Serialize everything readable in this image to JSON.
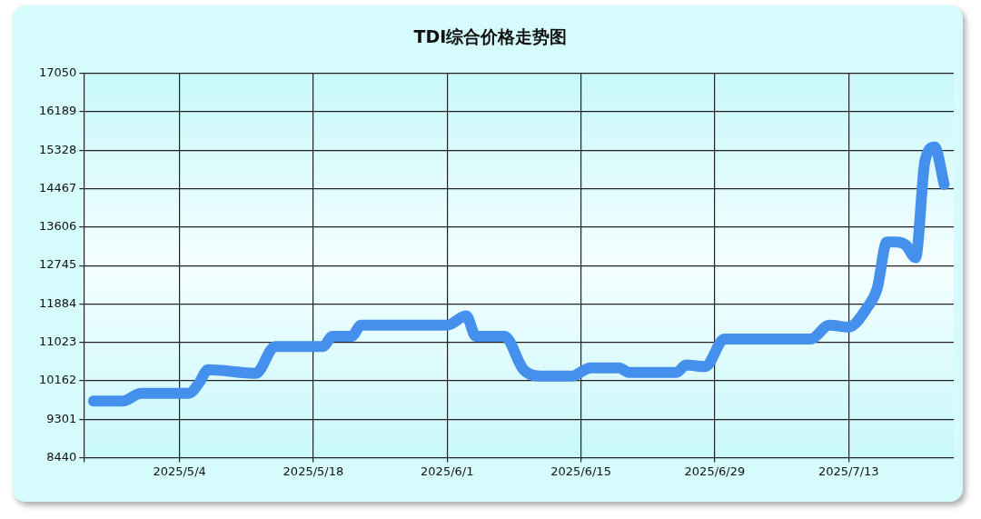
{
  "chart_data": {
    "type": "line",
    "title": "TDI综合价格走势图",
    "x": [
      "2025-04-25",
      "2025-04-28",
      "2025-04-30",
      "2025-05-05",
      "2025-05-06",
      "2025-05-07",
      "2025-05-12",
      "2025-05-14",
      "2025-05-19",
      "2025-05-20",
      "2025-05-22",
      "2025-05-23",
      "2025-06-01",
      "2025-06-03",
      "2025-06-04",
      "2025-06-07",
      "2025-06-09",
      "2025-06-11",
      "2025-06-12",
      "2025-06-14",
      "2025-06-16",
      "2025-06-19",
      "2025-06-20",
      "2025-06-25",
      "2025-06-26",
      "2025-06-28",
      "2025-06-30",
      "2025-07-09",
      "2025-07-11",
      "2025-07-13",
      "2025-07-15",
      "2025-07-16",
      "2025-07-17",
      "2025-07-18",
      "2025-07-19",
      "2025-07-20",
      "2025-07-21",
      "2025-07-22",
      "2025-07-23"
    ],
    "series": [
      {
        "color": "#4490ec",
        "values": [
          9705,
          9705,
          9880,
          9880,
          10100,
          10410,
          10330,
          10930,
          10930,
          11157,
          11157,
          11406,
          11406,
          11614,
          11157,
          11157,
          10410,
          10265,
          10265,
          10265,
          10452,
          10452,
          10348,
          10348,
          10514,
          10480,
          11095,
          11095,
          11406,
          11364,
          11820,
          12236,
          13270,
          13270,
          13200,
          12920,
          15100,
          15400,
          14560
        ]
      }
    ],
    "xlim": [
      "2025-04-24",
      "2025-07-24"
    ],
    "xticks": [
      {
        "value": "2025-04-24",
        "label": null
      },
      {
        "value": "2025-05-04",
        "label": "2025/5/4"
      },
      {
        "value": "2025-05-18",
        "label": "2025/5/18"
      },
      {
        "value": "2025-06-01",
        "label": "2025/6/1"
      },
      {
        "value": "2025-06-15",
        "label": "2025/6/15"
      },
      {
        "value": "2025-06-29",
        "label": "2025/6/29"
      },
      {
        "value": "2025-07-13",
        "label": "2025/7/13"
      }
    ],
    "ylim": [
      8440,
      17050
    ],
    "yticks": [
      8440,
      9301,
      10162,
      11023,
      11884,
      12745,
      13606,
      14467,
      15328,
      16189,
      17050
    ],
    "grid": true,
    "legend": false,
    "marker": "none",
    "line_style": "solid"
  }
}
